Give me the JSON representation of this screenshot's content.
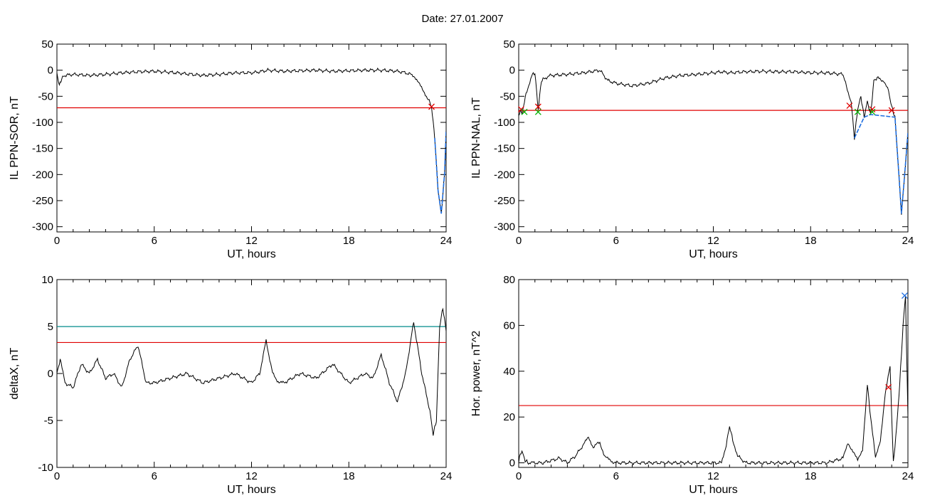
{
  "figure_title": "Date:  27.01.2007",
  "colors": {
    "trace": "#000000",
    "threshold_red": "#e00000",
    "threshold_teal": "#008b8b",
    "storm_blue": "#1e6ee0",
    "marker_green": "#00b000",
    "marker_red": "#e00000",
    "marker_blue": "#1e6ee0"
  },
  "chart_data": [
    {
      "type": "line",
      "xlabel": "UT, hours",
      "ylabel": "IL PPN-SOR, nT",
      "xlim": [
        0,
        24
      ],
      "ylim": [
        -310,
        50
      ],
      "xticks": [
        0,
        6,
        12,
        18,
        24
      ],
      "yticks": [
        50,
        0,
        -50,
        -100,
        -150,
        -200,
        -250,
        -300
      ],
      "series": [
        {
          "role": "trace",
          "x": [
            0,
            0.15,
            0.3,
            0.5,
            1,
            2,
            3,
            4,
            5,
            6,
            7,
            8,
            9,
            10,
            11,
            12,
            12.5,
            13,
            14,
            15,
            16,
            17,
            18,
            19,
            20,
            21,
            21.5,
            22,
            22.3,
            22.6,
            22.9,
            23.1,
            23.3,
            23.5,
            23.7,
            23.9,
            24
          ],
          "y": [
            -5,
            -30,
            -15,
            -10,
            -8,
            -10,
            -8,
            -5,
            -3,
            -2,
            -4,
            -7,
            -10,
            -8,
            -5,
            -5,
            -3,
            0,
            -2,
            -1,
            0,
            -2,
            -1,
            0,
            0,
            -2,
            -5,
            -10,
            -25,
            -40,
            -55,
            -70,
            -130,
            -230,
            -275,
            -200,
            -115
          ]
        },
        {
          "role": "threshold",
          "y_const": -72
        }
      ],
      "markers": [
        {
          "x": 23.1,
          "y": -70,
          "symbol": "x",
          "color": "red"
        }
      ]
    },
    {
      "type": "line",
      "xlabel": "UT, hours",
      "ylabel": "IL PPN-NAL, nT",
      "xlim": [
        0,
        24
      ],
      "ylim": [
        -310,
        50
      ],
      "xticks": [
        0,
        6,
        12,
        18,
        24
      ],
      "yticks": [
        50,
        0,
        -50,
        -100,
        -150,
        -200,
        -250,
        -300
      ],
      "series": [
        {
          "role": "trace",
          "x": [
            0,
            0.1,
            0.2,
            0.35,
            0.5,
            0.8,
            1,
            1.2,
            1.4,
            1.6,
            2,
            3,
            4,
            5,
            5.5,
            6,
            7,
            8,
            9,
            10,
            11,
            12,
            12.5,
            13,
            14,
            15,
            16,
            17,
            18,
            19,
            20,
            20.2,
            20.5,
            20.7,
            20.9,
            21.1,
            21.3,
            21.5,
            21.7,
            21.9,
            22.1,
            22.5,
            22.8,
            23,
            23.2,
            23.4,
            23.6,
            23.8,
            24
          ],
          "y": [
            -90,
            -75,
            -85,
            -60,
            -40,
            -10,
            -5,
            -75,
            -20,
            -15,
            -10,
            -8,
            -5,
            0,
            -20,
            -25,
            -30,
            -25,
            -15,
            -10,
            -8,
            -5,
            -3,
            -5,
            -3,
            -2,
            -3,
            -3,
            -5,
            -5,
            -8,
            -30,
            -60,
            -130,
            -75,
            -50,
            -90,
            -60,
            -85,
            -20,
            -15,
            -20,
            -40,
            -70,
            -90,
            -180,
            -275,
            -200,
            -120
          ]
        },
        {
          "role": "threshold",
          "y_const": -77
        }
      ],
      "markers": [
        {
          "x": 0.15,
          "y": -75,
          "symbol": "x",
          "color": "red"
        },
        {
          "x": 0.35,
          "y": -80,
          "symbol": "x",
          "color": "green"
        },
        {
          "x": 1.2,
          "y": -70,
          "symbol": "x",
          "color": "red"
        },
        {
          "x": 1.2,
          "y": -80,
          "symbol": "x",
          "color": "green"
        },
        {
          "x": 20.4,
          "y": -68,
          "symbol": "x",
          "color": "red"
        },
        {
          "x": 20.9,
          "y": -80,
          "symbol": "x",
          "color": "green"
        },
        {
          "x": 21.8,
          "y": -75,
          "symbol": "x",
          "color": "red"
        },
        {
          "x": 21.8,
          "y": -80,
          "symbol": "x",
          "color": "green"
        },
        {
          "x": 23.0,
          "y": -77,
          "symbol": "x",
          "color": "red"
        }
      ]
    },
    {
      "type": "line",
      "xlabel": "UT, hours",
      "ylabel": "deltaX, nT",
      "xlim": [
        0,
        24
      ],
      "ylim": [
        -10,
        10
      ],
      "xticks": [
        0,
        6,
        12,
        18,
        24
      ],
      "yticks": [
        10,
        5,
        0,
        -5,
        -10
      ],
      "series": [
        {
          "role": "trace",
          "x": [
            0,
            0.2,
            0.5,
            1,
            1.5,
            2,
            2.5,
            3,
            3.5,
            4,
            4.5,
            5,
            5.5,
            6,
            7,
            8,
            9,
            10,
            11,
            12,
            12.5,
            12.9,
            13.3,
            13.7,
            14,
            15,
            16,
            17,
            18,
            19,
            19.5,
            20,
            20.5,
            21,
            21.5,
            22,
            22.5,
            23,
            23.2,
            23.4,
            23.6,
            23.8,
            24
          ],
          "y": [
            0,
            1.5,
            -1,
            -1.5,
            1,
            0,
            1.5,
            -0.5,
            0,
            -1.5,
            1.5,
            3,
            -1,
            -1,
            -0.5,
            0,
            -1,
            -0.5,
            0,
            -1,
            0,
            3.5,
            0,
            -1,
            -1,
            0,
            -0.5,
            1,
            -1,
            0,
            -0.5,
            2,
            -1,
            -3,
            0,
            5.5,
            0,
            -4,
            -6.5,
            -5,
            5,
            7,
            4.5
          ]
        },
        {
          "role": "threshold",
          "y_const": 5,
          "color": "teal"
        },
        {
          "role": "threshold",
          "y_const": 3.3,
          "color": "red"
        }
      ]
    },
    {
      "type": "line",
      "xlabel": "UT, hours",
      "ylabel": "Hor. power, nT^2",
      "xlim": [
        0,
        24
      ],
      "ylim": [
        -2,
        80
      ],
      "xticks": [
        0,
        6,
        12,
        18,
        24
      ],
      "yticks": [
        80,
        60,
        40,
        20,
        0
      ],
      "series": [
        {
          "role": "trace",
          "x": [
            0,
            0.1,
            0.2,
            0.4,
            0.6,
            1,
            1.5,
            2,
            2.5,
            3,
            3.5,
            4,
            4.3,
            4.6,
            5,
            5.3,
            5.6,
            6,
            7,
            8,
            9,
            10,
            11,
            12,
            12.5,
            12.8,
            13,
            13.2,
            13.5,
            14,
            15,
            16,
            17,
            18,
            19,
            19.5,
            20,
            20.3,
            20.6,
            20.9,
            21.2,
            21.5,
            21.7,
            22,
            22.3,
            22.6,
            22.9,
            23.1,
            23.3,
            23.5,
            23.7,
            23.85,
            24
          ],
          "y": [
            0,
            4,
            5,
            1,
            0,
            0,
            0,
            1,
            2,
            0,
            3,
            8,
            11,
            7,
            9,
            3,
            1,
            0,
            0,
            0,
            0,
            0,
            0,
            0,
            0,
            8,
            16,
            10,
            3,
            0,
            0,
            0,
            0,
            0,
            0,
            1,
            2,
            9,
            5,
            1,
            6,
            34,
            20,
            2,
            10,
            30,
            42,
            0,
            15,
            35,
            60,
            73,
            20
          ]
        },
        {
          "role": "threshold",
          "y_const": 25,
          "color": "red"
        }
      ],
      "markers": [
        {
          "x": 22.8,
          "y": 33,
          "symbol": "x",
          "color": "red"
        },
        {
          "x": 23.8,
          "y": 73,
          "symbol": "x",
          "color": "blue"
        }
      ]
    }
  ]
}
